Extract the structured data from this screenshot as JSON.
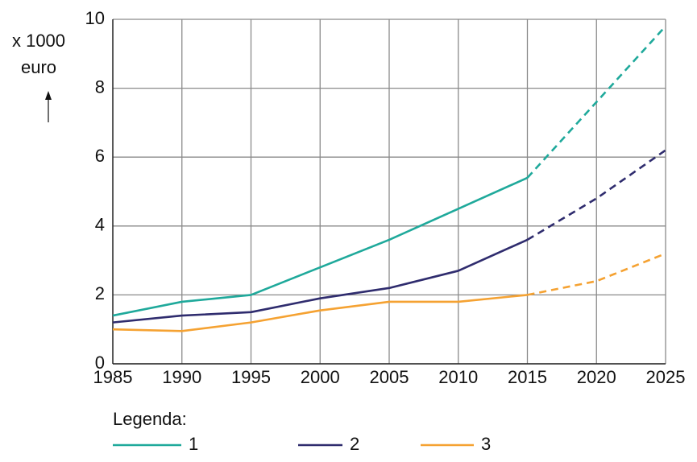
{
  "chart_data": {
    "type": "line",
    "y_label_lines": [
      "x 1000",
      "euro"
    ],
    "legend_title": "Legenda:",
    "x": [
      1985,
      1990,
      1995,
      2000,
      2005,
      2010,
      2015,
      2020,
      2025
    ],
    "xlim": [
      1985,
      2025
    ],
    "xticks": [
      1985,
      1990,
      1995,
      2000,
      2005,
      2010,
      2015,
      2020,
      2025
    ],
    "ylim": [
      0,
      10
    ],
    "yticks": [
      0,
      2,
      4,
      6,
      8,
      10
    ],
    "grid": true,
    "dashed_from": 2015,
    "series": [
      {
        "name": "1",
        "color": "#1fa99b",
        "values": [
          1.4,
          1.8,
          2.0,
          2.8,
          3.6,
          4.5,
          5.4,
          7.6,
          9.8
        ]
      },
      {
        "name": "2",
        "color": "#2f2c6e",
        "values": [
          1.2,
          1.4,
          1.5,
          1.9,
          2.2,
          2.7,
          3.6,
          4.8,
          6.2
        ]
      },
      {
        "name": "3",
        "color": "#f5a232",
        "values": [
          1.0,
          0.95,
          1.2,
          1.55,
          1.8,
          1.8,
          2.0,
          2.4,
          3.2
        ]
      }
    ]
  }
}
